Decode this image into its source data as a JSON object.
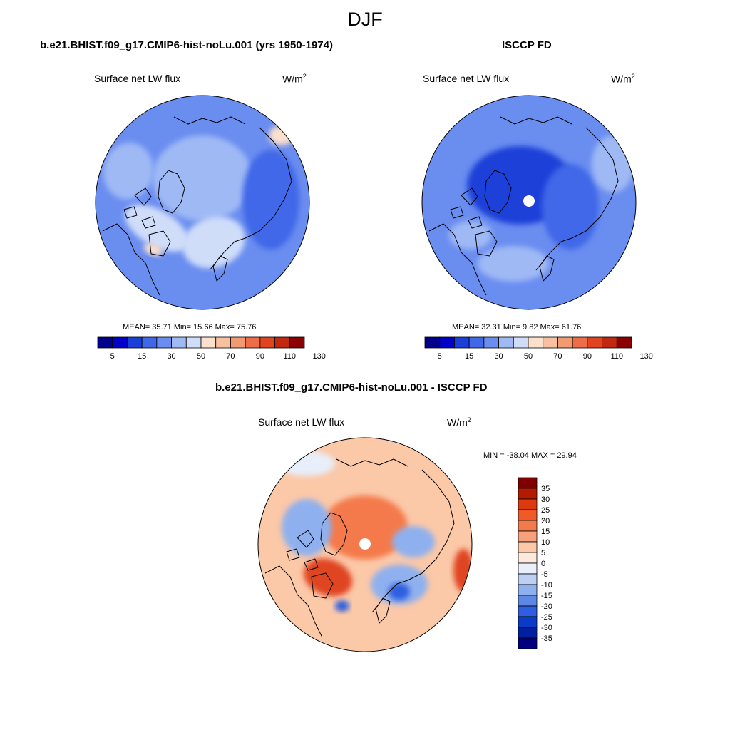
{
  "figure": {
    "season": "DJF"
  },
  "panels": [
    {
      "title": "b.e21.BHIST.f09_g17.CMIP6-hist-noLu.001 (yrs 1950-1974)",
      "variable": "Surface net LW flux",
      "units": "W/m",
      "units_exp": "2",
      "stats": "MEAN=  35.71  Min=  15.66  Max=  75.76",
      "pole_hole": false
    },
    {
      "title": "ISCCP FD",
      "variable": "Surface net LW flux",
      "units": "W/m",
      "units_exp": "2",
      "stats": "MEAN=  32.31  Min=   9.82  Max=  61.76",
      "pole_hole": true
    },
    {
      "title": "b.e21.BHIST.f09_g17.CMIP6-hist-noLu.001 - ISCCP FD",
      "variable": "Surface net LW flux",
      "units": "W/m",
      "units_exp": "2",
      "stats": "MIN = -38.04 MAX =  29.94",
      "pole_hole": true
    }
  ],
  "colorbar_abs": {
    "ticks": [
      "5",
      "15",
      "30",
      "50",
      "70",
      "90",
      "110",
      "130"
    ],
    "colors": [
      "#00008b",
      "#0000c8",
      "#1a3fd8",
      "#3f67e8",
      "#6a8df0",
      "#9fb9f5",
      "#cfddf9",
      "#fbe0cc",
      "#f7c0a0",
      "#f29a72",
      "#ec6d47",
      "#e04420",
      "#c22710",
      "#8b0000"
    ]
  },
  "colorbar_diff": {
    "ticks": [
      "35",
      "30",
      "25",
      "20",
      "15",
      "10",
      "5",
      "0",
      "-5",
      "-10",
      "-15",
      "-20",
      "-25",
      "-30",
      "-35"
    ],
    "colors": [
      "#7f0000",
      "#b51a00",
      "#dd3a10",
      "#f05a28",
      "#f47a4c",
      "#f8a07c",
      "#fbc8a8",
      "#fde8dc",
      "#e8eefa",
      "#bcd0f4",
      "#8fb0ee",
      "#5e88e6",
      "#2f5fe0",
      "#0a3cc8",
      "#0020a0",
      "#000080"
    ]
  },
  "map_colors": {
    "panel1_base": "#6a8df0",
    "panel1_light": "#9fb9f5",
    "panel1_mid": "#3f67e8",
    "panel1_pale": "#cfddf9",
    "panel1_warm": "#fbe0cc",
    "panel2_base": "#6a8df0",
    "panel2_dark": "#1a3fd8",
    "panel2_mid": "#3f67e8",
    "panel2_light": "#9fb9f5",
    "panel3_base": "#fbc8a8",
    "panel3_warm": "#f47a4c",
    "panel3_red": "#e04420",
    "panel3_cool": "#8fb0ee",
    "panel3_blue": "#2f5fe0",
    "panel3_pale": "#e8eefa",
    "coast": "#000000"
  }
}
